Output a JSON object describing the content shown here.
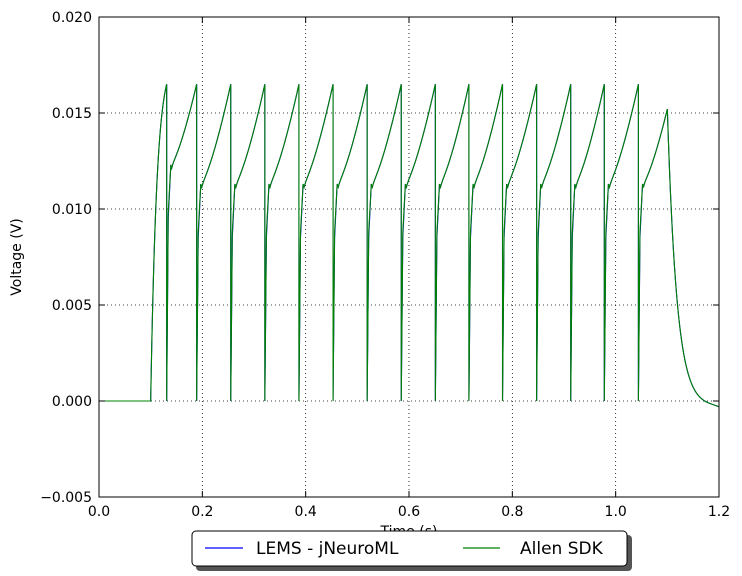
{
  "chart_data": {
    "type": "line",
    "title": "",
    "xlabel": "Time (s)",
    "ylabel": "Voltage (V)",
    "xlim": [
      0.0,
      1.2
    ],
    "ylim": [
      -0.005,
      0.02
    ],
    "x_ticks": [
      "0.0",
      "0.2",
      "0.4",
      "0.6",
      "0.8",
      "1.0",
      "1.2"
    ],
    "y_ticks": [
      "−0.005",
      "0.000",
      "0.005",
      "0.010",
      "0.015",
      "0.020"
    ],
    "x_tick_values": [
      0.0,
      0.2,
      0.4,
      0.6,
      0.8,
      1.0,
      1.2
    ],
    "y_tick_values": [
      -0.005,
      0.0,
      0.005,
      0.01,
      0.015,
      0.02
    ],
    "grid": true,
    "legend_position": "bottom-center",
    "stimulus_onset": 0.1,
    "stimulus_offset": 1.1,
    "resting_voltage": 0.0,
    "spike_peak_voltage": 0.0165,
    "first_reset_voltage": 0.0123,
    "reset_voltage": 0.0113,
    "final_peak_voltage": 0.0152,
    "undershoot_voltage": -0.0003,
    "spike_times": [
      0.131,
      0.189,
      0.255,
      0.321,
      0.387,
      0.453,
      0.519,
      0.585,
      0.651,
      0.716,
      0.781,
      0.847,
      0.913,
      0.978,
      1.044
    ],
    "series": [
      {
        "name": "LEMS - jNeuroML",
        "color": "#0000ff"
      },
      {
        "name": "Allen SDK",
        "color": "#008000"
      }
    ]
  }
}
